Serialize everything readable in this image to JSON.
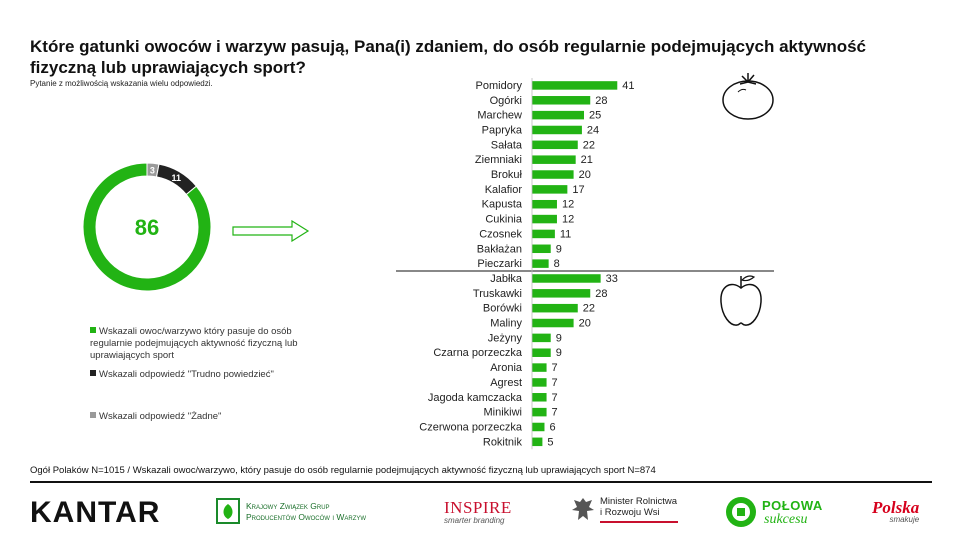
{
  "title": "Które gatunki owoców i warzyw pasują, Pana(i) zdaniem, do osób regularnie podejmujących aktywność fizyczną lub uprawiających sport?",
  "subtitle": "Pytanie z możliwością wskazania wielu odpowiedzi.",
  "colors": {
    "green": "#22b314",
    "dark": "#222222",
    "gray": "#9a9a9a"
  },
  "donut": {
    "center_label": "86",
    "segments": [
      {
        "label": "86",
        "value": 86,
        "color": "#22b314"
      },
      {
        "label": "11",
        "value": 11,
        "color": "#222222"
      },
      {
        "label": "3",
        "value": 3,
        "color": "#9a9a9a"
      }
    ]
  },
  "legend": [
    {
      "text": "Wskazali owoc/warzywo który pasuje do osób regularnie podejmujących aktywność fizyczną lub uprawiających sport",
      "color": "#22b314"
    },
    {
      "text": "Wskazali odpowiedź \"Trudno powiedzieć\"",
      "color": "#222222"
    },
    {
      "text": "Wskazali odpowiedź \"Żadne\"",
      "color": "#9a9a9a"
    }
  ],
  "icons": [
    "arrow-right-icon",
    "tomato-icon",
    "apple-icon"
  ],
  "chart_data": {
    "type": "bar",
    "orientation": "horizontal",
    "groups": [
      {
        "categories": [
          "Pomidory",
          "Ogórki",
          "Marchew",
          "Papryka",
          "Sałata",
          "Ziemniaki",
          "Brokuł",
          "Kalafior",
          "Kapusta",
          "Cukinia",
          "Czosnek",
          "Bakłażan",
          "Pieczarki"
        ],
        "values": [
          41,
          28,
          25,
          24,
          22,
          21,
          20,
          17,
          12,
          12,
          11,
          9,
          8
        ]
      },
      {
        "categories": [
          "Jabłka",
          "Truskawki",
          "Borówki",
          "Maliny",
          "Jeżyny",
          "Czarna porzeczka",
          "Aronia",
          "Agrest",
          "Jagoda kamczacka",
          "Minikiwi",
          "Czerwona porzeczka",
          "Rokitnik"
        ],
        "values": [
          33,
          28,
          22,
          20,
          9,
          9,
          7,
          7,
          7,
          7,
          6,
          5
        ]
      }
    ],
    "color": "#22b314"
  },
  "footnote": "Ogół Polaków N=1015 / Wskazali owoc/warzywo, który pasuje do osób regularnie podejmujących aktywność fizyczną lub uprawiających sport N=874",
  "logos": {
    "kantar": "KANTAR",
    "kzgp": [
      "Krajowy Związek Grup",
      "Producentów Owoców i Warzyw"
    ],
    "inspire": [
      "INSPIRE",
      "smarter branding"
    ],
    "ministry": [
      "Minister Rolnictwa",
      "i Rozwoju Wsi"
    ],
    "polowa": [
      "POŁOWA",
      "sukcesu"
    ],
    "polska": [
      "Polska",
      "smakuje"
    ]
  }
}
